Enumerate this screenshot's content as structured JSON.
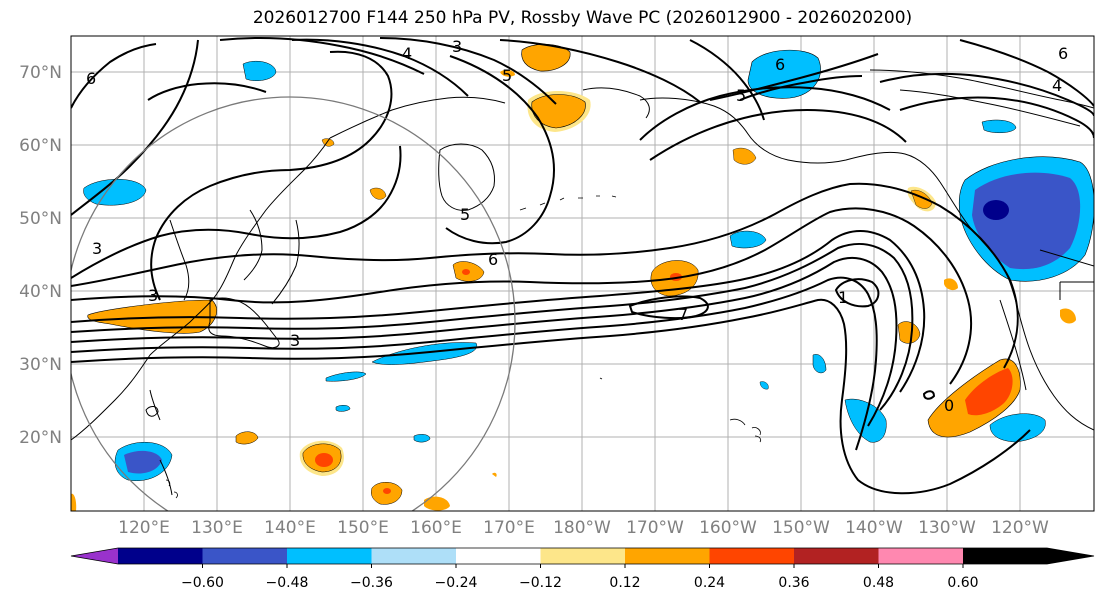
{
  "title": "2026012700 F144 250 hPa PV, Rossby Wave PC (2026012900 - 2026020200)",
  "lat_labels": [
    "70°N",
    "60°N",
    "50°N",
    "40°N",
    "30°N",
    "20°N"
  ],
  "lon_labels": [
    "120°E",
    "130°E",
    "140°E",
    "150°E",
    "160°E",
    "170°E",
    "180°W",
    "170°W",
    "160°W",
    "150°W",
    "140°W",
    "130°W",
    "120°W"
  ],
  "colorbar": {
    "ticks": [
      "−0.60",
      "−0.48",
      "−0.36",
      "−0.24",
      "−0.12",
      "0.12",
      "0.24",
      "0.36",
      "0.48",
      "0.60"
    ],
    "colors": [
      "#9932cc",
      "#00008b",
      "#3a55c8",
      "#00bfff",
      "#aedff8",
      "#ffffff",
      "#fde68a",
      "#ffa500",
      "#ff4500",
      "#b22222",
      "#ff88b0"
    ]
  },
  "contour_labels": [
    "4",
    "3",
    "5",
    "6",
    "6",
    "5",
    "4",
    "6",
    "3",
    "3",
    "5",
    "6",
    "7",
    "7",
    "3",
    "1",
    "0"
  ]
}
